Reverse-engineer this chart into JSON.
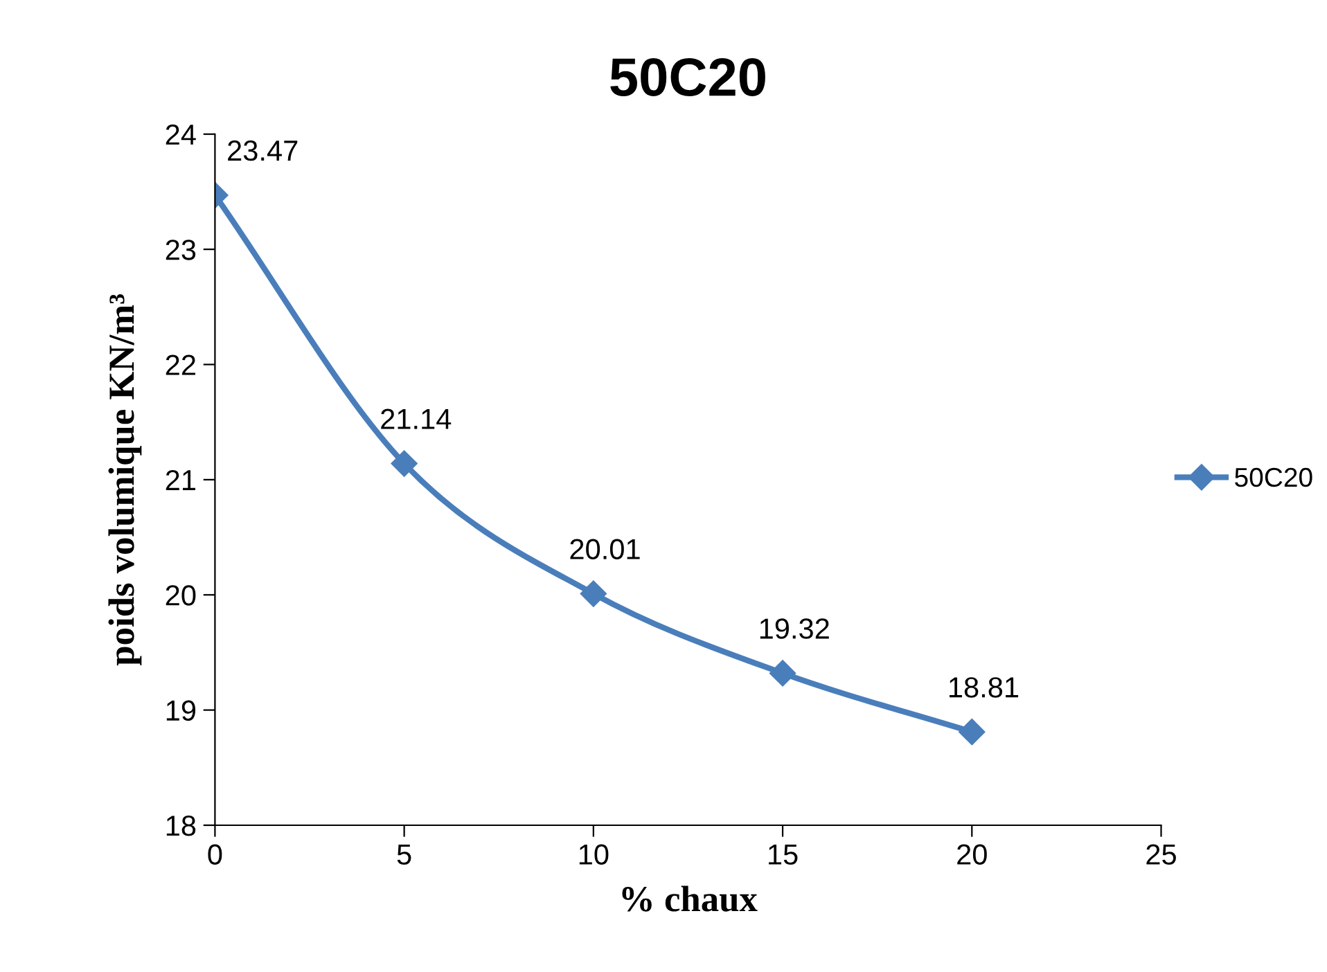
{
  "chart_data": {
    "type": "line",
    "title": "50C20",
    "xlabel": "% chaux",
    "ylabel": "poids volumique KN/m³",
    "x": [
      0,
      5,
      10,
      15,
      20
    ],
    "series": [
      {
        "name": "50C20",
        "color": "#4a7ebb",
        "values": [
          23.47,
          21.14,
          20.01,
          19.32,
          18.81
        ]
      }
    ],
    "xlim": [
      0,
      25
    ],
    "xticks": [
      0,
      5,
      10,
      15,
      20,
      25
    ],
    "ylim": [
      18,
      24
    ],
    "yticks": [
      18,
      19,
      20,
      21,
      22,
      23,
      24
    ],
    "grid": false,
    "legend": "right",
    "marker": "diamond",
    "line_style": "solid",
    "data_labels": true
  }
}
